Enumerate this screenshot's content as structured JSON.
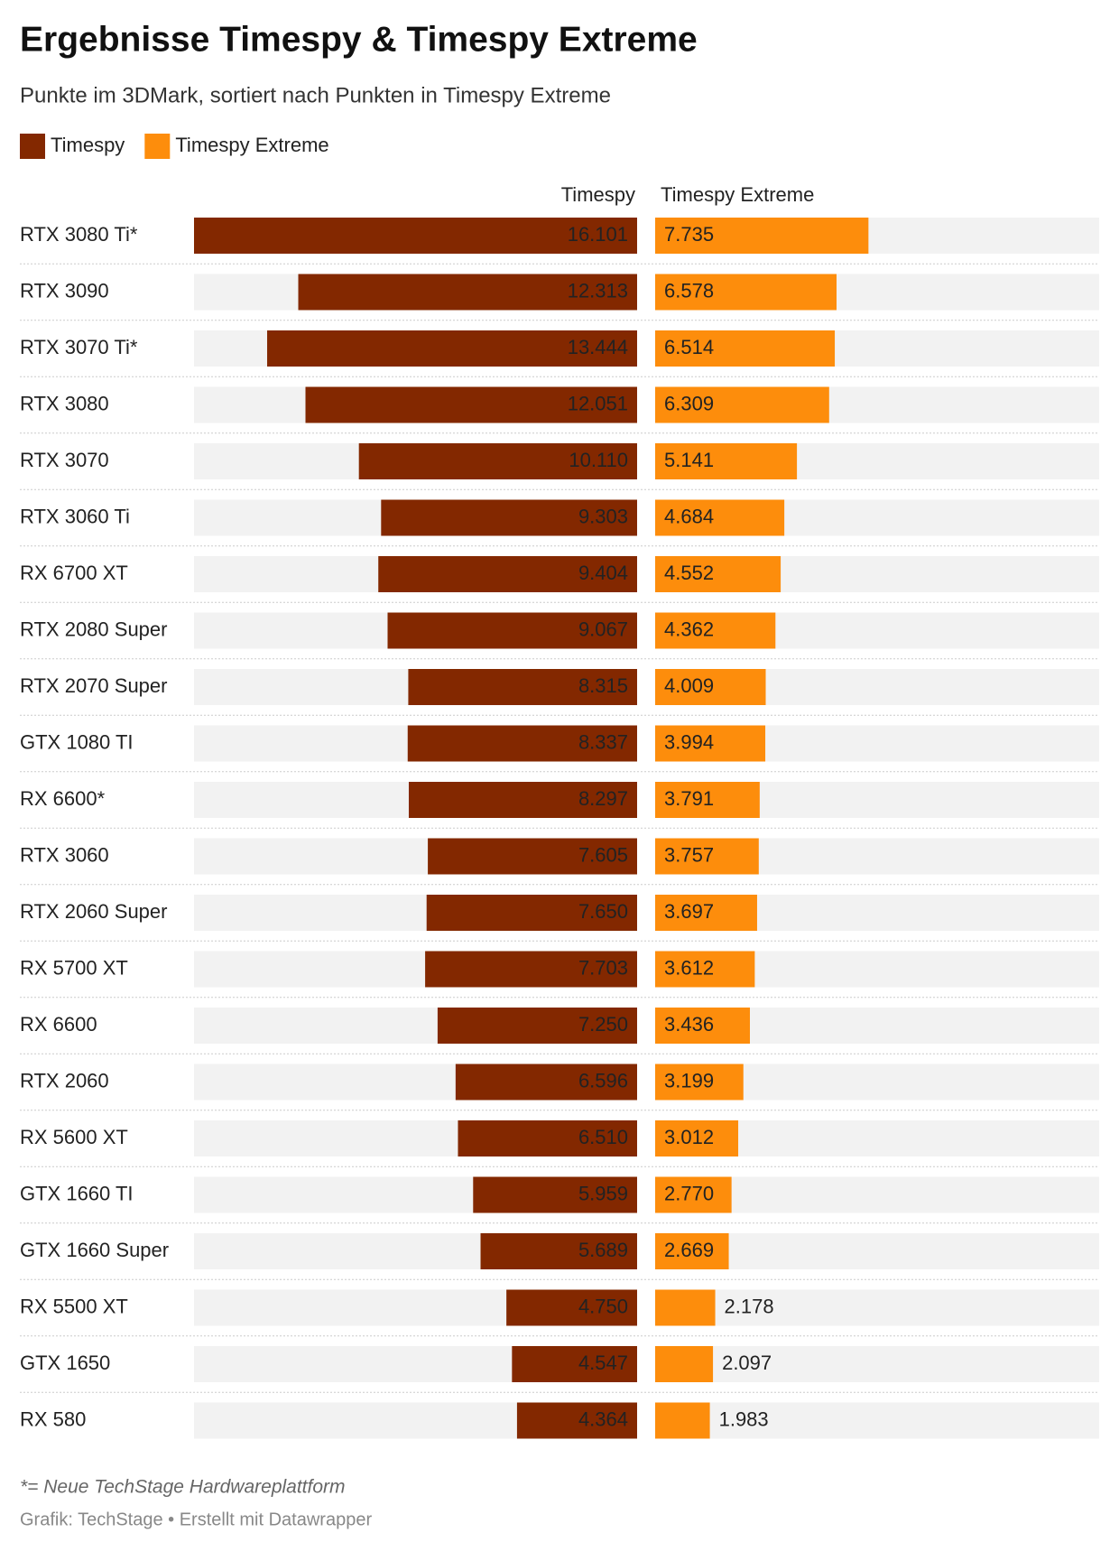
{
  "chart_data": {
    "type": "split-bar",
    "title": "Ergebnisse Timespy & Timespy Extreme",
    "subtitle": "Punkte im 3DMark, sortiert nach Punkten in Timespy Extreme",
    "categories": [
      "RTX 3080 Ti*",
      "RTX 3090",
      "RTX 3070 Ti*",
      "RTX 3080",
      "RTX 3070",
      "RTX 3060 Ti",
      "RX 6700 XT",
      "RTX 2080 Super",
      "RTX 2070 Super",
      "GTX 1080 TI",
      "RX 6600*",
      "RTX 3060",
      "RTX 2060 Super",
      "RX 5700 XT",
      "RX 6600",
      "RTX 2060",
      "RX 5600 XT",
      "GTX 1660 TI",
      "GTX 1660 Super",
      "RX 5500 XT",
      "GTX 1650",
      "RX 580"
    ],
    "series": [
      {
        "name": "Timespy",
        "color": "#832800",
        "values": [
          16101,
          12313,
          13444,
          12051,
          10110,
          9303,
          9404,
          9067,
          8315,
          8337,
          8297,
          7605,
          7650,
          7703,
          7250,
          6596,
          6510,
          5959,
          5689,
          4750,
          4547,
          4364
        ],
        "value_labels": [
          "16.101",
          "12.313",
          "13.444",
          "12.051",
          "10.110",
          "9.303",
          "9.404",
          "9.067",
          "8.315",
          "8.337",
          "8.297",
          "7.605",
          "7.650",
          "7.703",
          "7.250",
          "6.596",
          "6.510",
          "5.959",
          "5.689",
          "4.750",
          "4.547",
          "4.364"
        ]
      },
      {
        "name": "Timespy Extreme",
        "color": "#fd8d0c",
        "values": [
          7735,
          6578,
          6514,
          6309,
          5141,
          4684,
          4552,
          4362,
          4009,
          3994,
          3791,
          3757,
          3697,
          3612,
          3436,
          3199,
          3012,
          2770,
          2669,
          2178,
          2097,
          1983
        ],
        "value_labels": [
          "7.735",
          "6.578",
          "6.514",
          "6.309",
          "5.141",
          "4.684",
          "4.552",
          "4.362",
          "4.009",
          "3.994",
          "3.791",
          "3.757",
          "3.697",
          "3.612",
          "3.436",
          "3.199",
          "3.012",
          "2.770",
          "2.669",
          "2.178",
          "2.097",
          "1.983"
        ]
      }
    ],
    "xlim": [
      0,
      16101
    ],
    "footnote": "*= Neue TechStage Hardwareplattform",
    "credit": "Grafik: TechStage • Erstellt mit Datawrapper"
  }
}
